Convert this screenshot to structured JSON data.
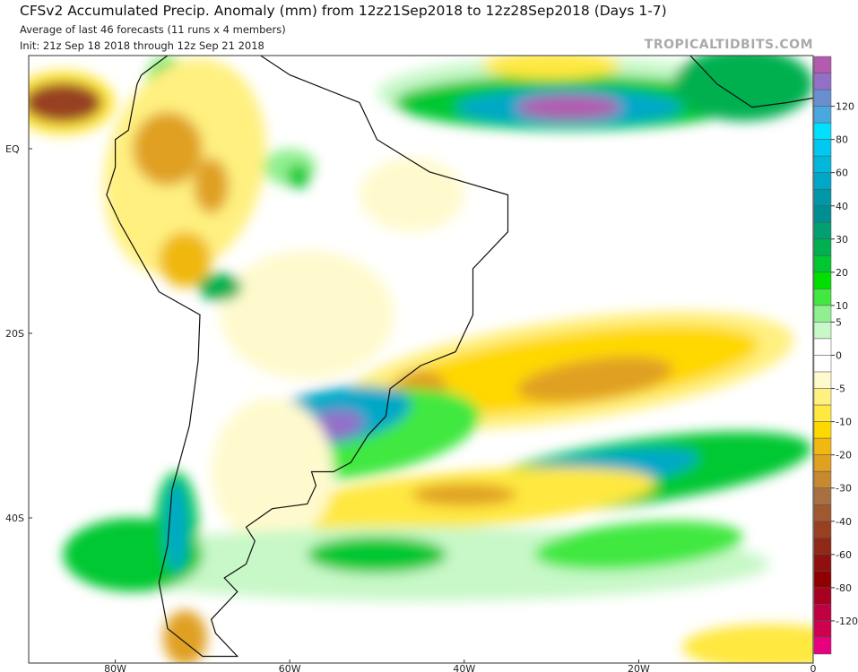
{
  "header": {
    "title": "CFSv2 Accumulated Precip. Anomaly (mm) from 12z21Sep2018 to 12z28Sep2018 (Days 1-7)",
    "subtitle1": "Average of last 46 forecasts (11 runs x 4 members)",
    "subtitle2": "Init: 21z Sep 18 2018 through 12z Sep 21 2018",
    "brand": "TROPICALTIDBITS.COM"
  },
  "map": {
    "lat_labels": [
      "EQ",
      "20S",
      "40S"
    ],
    "lon_labels": [
      "80W",
      "60W",
      "40W",
      "20W",
      "0"
    ],
    "extent": {
      "lon": [
        -90,
        0
      ],
      "lat": [
        -56,
        10
      ]
    }
  },
  "colorbar": {
    "labels": [
      "120",
      "80",
      "60",
      "40",
      "30",
      "20",
      "10",
      "5",
      "0",
      "-5",
      "-10",
      "-20",
      "-30",
      "-40",
      "-60",
      "-80",
      "-120"
    ],
    "colors": [
      "#b45aaf",
      "#9370c8",
      "#6a8fd0",
      "#4aa8e0",
      "#00e0ff",
      "#00c8f0",
      "#00b8dc",
      "#00a8c8",
      "#0098a8",
      "#008f90",
      "#00a070",
      "#00b050",
      "#00c830",
      "#00e000",
      "#40e840",
      "#90f090",
      "#c8f8c8",
      "#ffffff",
      "#ffffff",
      "#fffacd",
      "#fff080",
      "#ffe840",
      "#ffd800",
      "#f0b810",
      "#e0a020",
      "#c88830",
      "#a87040",
      "#a05830",
      "#984020",
      "#902818",
      "#901010",
      "#900000",
      "#a80020",
      "#c00040",
      "#d00050",
      "#e80080"
    ]
  }
}
